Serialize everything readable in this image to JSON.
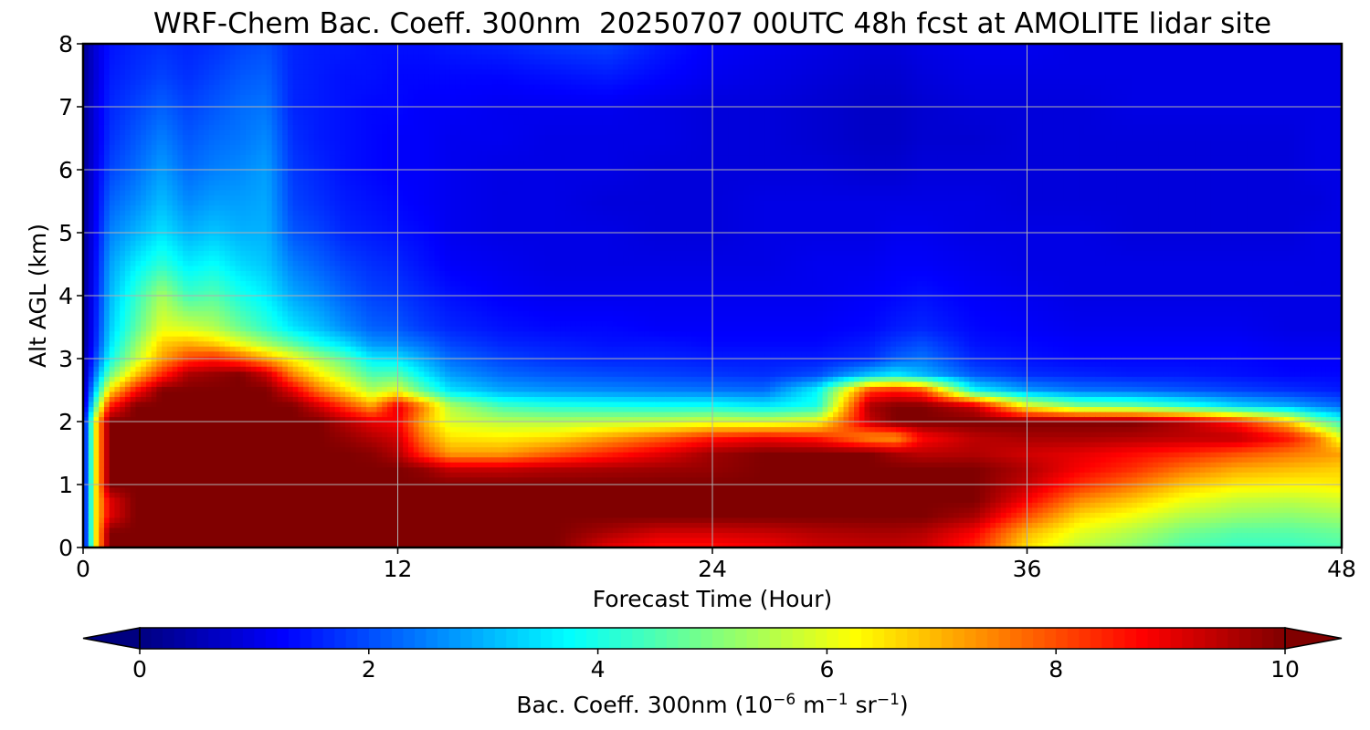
{
  "chart_data": {
    "type": "heatmap",
    "title": "WRF-Chem Bac. Coeff. 300nm  20250707 00UTC 48h fcst at AMOLITE lidar site",
    "xlabel": "Forecast Time (Hour)",
    "ylabel": "Alt AGL (km)",
    "xlim": [
      0,
      48
    ],
    "ylim": [
      0,
      8
    ],
    "x_ticks": [
      "0",
      "12",
      "24",
      "36",
      "48"
    ],
    "y_ticks": [
      "0",
      "1",
      "2",
      "3",
      "4",
      "5",
      "6",
      "7",
      "8"
    ],
    "grid": true,
    "colormap": "jet",
    "colorbar": {
      "label_main": "Bac. Coeff. 300nm  (10",
      "label_exp1": "−6",
      "label_mid": " m",
      "label_exp2": "−1",
      "label_end": " sr",
      "label_exp3": "−1",
      "label_close": ")",
      "ticks": [
        "0",
        "2",
        "4",
        "6",
        "8",
        "10"
      ],
      "range": [
        0,
        10
      ],
      "extend": "both",
      "orientation": "horizontal"
    },
    "x": [
      0,
      0.5,
      1,
      2,
      3,
      4,
      5,
      6,
      7,
      8,
      9,
      10,
      11,
      12,
      13,
      14,
      16,
      18,
      20,
      22,
      24,
      26,
      28,
      30,
      31,
      32,
      34,
      36,
      38,
      40,
      42,
      44,
      46,
      47,
      48
    ],
    "y": [
      0,
      0.25,
      0.5,
      0.75,
      1,
      1.25,
      1.5,
      1.75,
      2,
      2.25,
      2.5,
      2.75,
      3,
      3.25,
      3.5,
      4,
      4.5,
      5,
      5.5,
      6,
      6.5,
      7,
      7.5,
      8
    ],
    "z_description": "backscatter coefficient (10^-6 m^-1 sr^-1) at each time/altitude; rows = altitude levels, columns = forecast hours",
    "z": [
      [
        0.8,
        6.5,
        10,
        10,
        10,
        10,
        10,
        10,
        10,
        10,
        10,
        10,
        10,
        10,
        10,
        10,
        10,
        10,
        9,
        8.6,
        8.6,
        8.8,
        9.2,
        9.3,
        9.3,
        9.2,
        8.4,
        6.5,
        5.6,
        5.1,
        4.5,
        4.3,
        4.3,
        4.4,
        4.5
      ],
      [
        0.8,
        6.5,
        10,
        10,
        10,
        10,
        10,
        10,
        10,
        10,
        10,
        10,
        10,
        10,
        10,
        10,
        10,
        10,
        9.6,
        9.2,
        9.2,
        9.3,
        9.5,
        9.6,
        9.6,
        9.5,
        8.8,
        7,
        6,
        5.5,
        4.9,
        4.6,
        4.6,
        4.7,
        4.8
      ],
      [
        0.8,
        6.5,
        9,
        10,
        10,
        10,
        10,
        10,
        10,
        10,
        10,
        10,
        10,
        10,
        10,
        10,
        10,
        10,
        10,
        10,
        10,
        10,
        10,
        10,
        10,
        10,
        9.6,
        8,
        6.6,
        6.1,
        5.5,
        5.2,
        5.1,
        5.2,
        5.3
      ],
      [
        0.8,
        6.5,
        9,
        10,
        10,
        10,
        10,
        10,
        10,
        10,
        10,
        10,
        10,
        10,
        10,
        10,
        10,
        10,
        10,
        10,
        10,
        10,
        10,
        10,
        10,
        10,
        10,
        8.8,
        7.4,
        6.8,
        6.1,
        5.7,
        5.6,
        5.7,
        5.8
      ],
      [
        0.8,
        6.5,
        10,
        10,
        10,
        10,
        10,
        10,
        10,
        10,
        10,
        10,
        10,
        10,
        10,
        10,
        10,
        10,
        10,
        10,
        10,
        10,
        10,
        10,
        10,
        10,
        10,
        9.3,
        8.3,
        7.6,
        6.8,
        6.4,
        6.3,
        6.3,
        6.4
      ],
      [
        0.8,
        6.5,
        10,
        10,
        10,
        10,
        10,
        10,
        10,
        10,
        10,
        10,
        10,
        10,
        9.8,
        9.3,
        9.3,
        9.5,
        9.6,
        9.7,
        9.8,
        10,
        10,
        10,
        10,
        10,
        10,
        9.5,
        8.8,
        8.3,
        7.6,
        7.1,
        6.9,
        6.8,
        6.7
      ],
      [
        0.8,
        6.5,
        10,
        10,
        10,
        10,
        10,
        10,
        10,
        10,
        10,
        10,
        9.9,
        9.5,
        8.2,
        7.2,
        7.2,
        7.8,
        8.4,
        9,
        9.7,
        10,
        10,
        10,
        9.6,
        9.4,
        9.5,
        9.2,
        9,
        8.7,
        8.4,
        8,
        7.6,
        7.4,
        7.2
      ],
      [
        0.8,
        6.5,
        10,
        10,
        10,
        10,
        10,
        10,
        10,
        10,
        10,
        9.8,
        9.5,
        9.2,
        7.5,
        6.5,
        6.4,
        6.6,
        7.2,
        7.8,
        8.5,
        8.8,
        8.5,
        7.3,
        7.2,
        8.7,
        9.4,
        9.6,
        9.6,
        9.5,
        9.4,
        9.4,
        8.6,
        7.7,
        6
      ],
      [
        0.8,
        6.5,
        10,
        10,
        10,
        10,
        10,
        10,
        10,
        10,
        10,
        9.5,
        9,
        8.8,
        7,
        5.9,
        5.6,
        5.5,
        5.6,
        5.7,
        5.9,
        5.8,
        6.2,
        9.3,
        10,
        10,
        10,
        10,
        10,
        10,
        9.5,
        8.5,
        6.8,
        5.2,
        4.2
      ],
      [
        0.5,
        4.8,
        8.5,
        10,
        10,
        10,
        10,
        10,
        10,
        10,
        9.2,
        8.2,
        7.2,
        9,
        7.4,
        5.5,
        4.4,
        4.1,
        4,
        3.9,
        3.9,
        3.6,
        4,
        9.6,
        10,
        10,
        9.3,
        6.2,
        5,
        4.8,
        4.2,
        3.4,
        3,
        2.6,
        2.3
      ],
      [
        0.4,
        3.5,
        6.5,
        8.6,
        10,
        10,
        10,
        10,
        10,
        9,
        7.6,
        6.6,
        5.5,
        6,
        4.6,
        3.5,
        2.9,
        2.7,
        2.6,
        2.5,
        2.4,
        2.3,
        3.7,
        8.2,
        8.5,
        8.1,
        3.8,
        2.8,
        2.4,
        2.3,
        2.1,
        1.9,
        1.7,
        1.6,
        1.5
      ],
      [
        0.3,
        2.6,
        4.8,
        6.8,
        8.4,
        9.6,
        9.8,
        10,
        9.3,
        7.5,
        6.4,
        5.5,
        4.5,
        4.6,
        3.6,
        2.8,
        2.3,
        2.1,
        2,
        1.9,
        1.8,
        1.7,
        2,
        3.2,
        3.6,
        3.1,
        2.1,
        1.7,
        1.6,
        1.5,
        1.5,
        1.4,
        1.3,
        1.3,
        1.3
      ],
      [
        0.3,
        2,
        3.8,
        5.6,
        7.2,
        8.2,
        8.5,
        8,
        7.2,
        6.3,
        5.4,
        4.6,
        3.6,
        3.5,
        2.9,
        2.3,
        1.9,
        1.7,
        1.6,
        1.6,
        1.5,
        1.5,
        1.5,
        1.7,
        2.2,
        2.4,
        1.6,
        1.4,
        1.3,
        1.3,
        1.3,
        1.3,
        1.2,
        1.2,
        1.2
      ],
      [
        0.2,
        1.7,
        3.4,
        5.1,
        6.7,
        7,
        6.7,
        6,
        5.3,
        4.6,
        3.9,
        3.4,
        2.7,
        2.6,
        2.3,
        1.9,
        1.6,
        1.5,
        1.4,
        1.4,
        1.3,
        1.3,
        1.3,
        1.5,
        1.8,
        2,
        1.4,
        1.3,
        1.2,
        1.2,
        1.2,
        1.2,
        1.1,
        1.1,
        1.1
      ],
      [
        0.2,
        1.6,
        3.2,
        4.6,
        6,
        5.8,
        5.5,
        4.8,
        4.2,
        3.5,
        3.1,
        2.6,
        2.2,
        2.1,
        1.8,
        1.6,
        1.4,
        1.3,
        1.3,
        1.2,
        1.2,
        1.2,
        1.2,
        1.3,
        1.5,
        1.6,
        1.3,
        1.2,
        1.1,
        1.1,
        1.1,
        1.1,
        1,
        1,
        1
      ],
      [
        0.2,
        1.5,
        3,
        4.2,
        5.4,
        4.4,
        4.6,
        4,
        3.6,
        2.9,
        2.6,
        2.2,
        1.9,
        1.8,
        1.6,
        1.4,
        1.2,
        1.1,
        1.1,
        1.1,
        1.1,
        1.1,
        1.1,
        1.2,
        1.3,
        1.4,
        1.2,
        1.1,
        1,
        1,
        1,
        1,
        1,
        1,
        1
      ],
      [
        0.2,
        1.4,
        2.8,
        3.6,
        4.2,
        3.6,
        3.8,
        3.4,
        3.2,
        2.5,
        2.2,
        1.9,
        1.7,
        1.6,
        1.4,
        1.2,
        1.1,
        1,
        1,
        1,
        1,
        1,
        1.1,
        1.1,
        1.2,
        1.2,
        1.1,
        1,
        1,
        1,
        1,
        1,
        1,
        1,
        1
      ],
      [
        0.2,
        1.3,
        2.5,
        3,
        3.5,
        3,
        3.2,
        3,
        3,
        2.1,
        1.9,
        1.6,
        1.5,
        1.4,
        1.3,
        1.1,
        1,
        1,
        1,
        0.9,
        0.9,
        1,
        1,
        1,
        1.1,
        1.1,
        1,
        1,
        1,
        0.9,
        0.9,
        0.9,
        0.9,
        1,
        1
      ],
      [
        0.2,
        1.2,
        2.2,
        2.6,
        3.1,
        2.6,
        2.8,
        2.8,
        2.9,
        1.9,
        1.7,
        1.5,
        1.4,
        1.3,
        1.2,
        1.1,
        1,
        1,
        0.9,
        0.9,
        0.9,
        1,
        1,
        1,
        1,
        1,
        1,
        0.9,
        0.9,
        0.9,
        0.9,
        0.9,
        0.9,
        0.9,
        1
      ],
      [
        0.2,
        1.1,
        1.9,
        2.3,
        2.8,
        2.3,
        2.5,
        2.6,
        2.8,
        1.8,
        1.6,
        1.4,
        1.3,
        1.2,
        1.2,
        1.1,
        1,
        1,
        1,
        0.9,
        0.9,
        0.9,
        0.9,
        0.8,
        0.8,
        0.9,
        0.9,
        0.9,
        0.9,
        0.9,
        0.9,
        0.9,
        0.9,
        1,
        1
      ],
      [
        0.2,
        1,
        1.7,
        2.1,
        2.5,
        2.1,
        2.3,
        2.4,
        2.6,
        1.7,
        1.5,
        1.4,
        1.3,
        1.2,
        1.2,
        1.1,
        1.1,
        1,
        1,
        1,
        0.9,
        0.9,
        0.8,
        0.7,
        0.7,
        0.8,
        0.8,
        0.9,
        0.9,
        0.9,
        0.9,
        0.9,
        0.9,
        1,
        1
      ],
      [
        0.2,
        1,
        1.6,
        1.9,
        2.2,
        1.9,
        2.1,
        2.3,
        2.4,
        1.6,
        1.5,
        1.4,
        1.3,
        1.3,
        1.2,
        1.2,
        1.1,
        1.1,
        1.1,
        1,
        0.9,
        0.9,
        0.8,
        0.7,
        0.7,
        0.8,
        0.9,
        0.9,
        0.9,
        1,
        1,
        1,
        1,
        1,
        1
      ],
      [
        0.2,
        0.9,
        1.5,
        1.7,
        1.9,
        1.7,
        1.9,
        2.1,
        2.2,
        1.6,
        1.5,
        1.4,
        1.4,
        1.3,
        1.3,
        1.3,
        1.3,
        1.4,
        1.5,
        1.3,
        1.1,
        1,
        0.9,
        0.8,
        0.8,
        0.9,
        1,
        1,
        1,
        1,
        1,
        1,
        1,
        1,
        1
      ],
      [
        0.2,
        0.9,
        1.4,
        1.6,
        1.7,
        1.6,
        1.7,
        1.9,
        2,
        1.6,
        1.5,
        1.5,
        1.4,
        1.4,
        1.4,
        1.5,
        1.6,
        1.8,
        1.9,
        1.5,
        1.2,
        1.1,
        1,
        0.9,
        0.9,
        1,
        1.1,
        1.1,
        1,
        1,
        1,
        1,
        1,
        1,
        1
      ]
    ]
  }
}
